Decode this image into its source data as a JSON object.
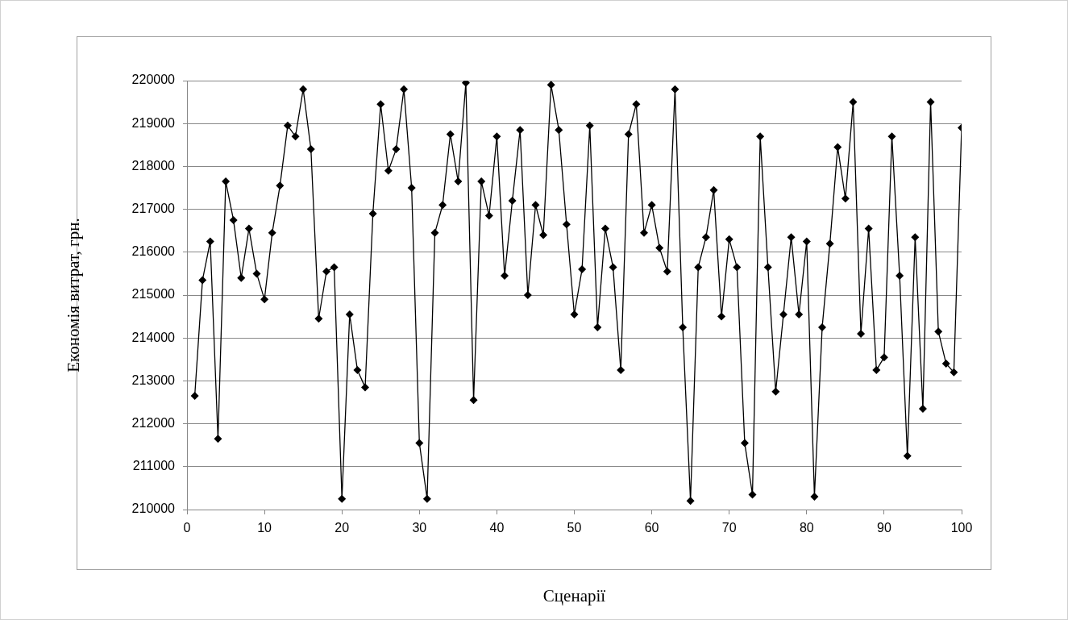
{
  "chart_data": {
    "type": "line",
    "xlabel": "Сценарії",
    "ylabel": "Економія витрат, грн.",
    "marker": "diamond",
    "grid": "y",
    "xlim": [
      0,
      100
    ],
    "xticks": [
      0,
      10,
      20,
      30,
      40,
      50,
      60,
      70,
      80,
      90,
      100
    ],
    "ylim": [
      210000,
      220000
    ],
    "yticks": [
      210000,
      211000,
      212000,
      213000,
      214000,
      215000,
      216000,
      217000,
      218000,
      219000,
      220000
    ],
    "x": [
      1,
      2,
      3,
      4,
      5,
      6,
      7,
      8,
      9,
      10,
      11,
      12,
      13,
      14,
      15,
      16,
      17,
      18,
      19,
      20,
      21,
      22,
      23,
      24,
      25,
      26,
      27,
      28,
      29,
      30,
      31,
      32,
      33,
      34,
      35,
      36,
      37,
      38,
      39,
      40,
      41,
      42,
      43,
      44,
      45,
      46,
      47,
      48,
      49,
      50,
      51,
      52,
      53,
      54,
      55,
      56,
      57,
      58,
      59,
      60,
      61,
      62,
      63,
      64,
      65,
      66,
      67,
      68,
      69,
      70,
      71,
      72,
      73,
      74,
      75,
      76,
      77,
      78,
      79,
      80,
      81,
      82,
      83,
      84,
      85,
      86,
      87,
      88,
      89,
      90,
      91,
      92,
      93,
      94,
      95,
      96,
      97,
      98,
      99,
      100
    ],
    "series": [
      {
        "color": "#000000",
        "values": [
          212650,
          215350,
          216250,
          211650,
          217650,
          216750,
          215400,
          216550,
          215500,
          214900,
          216450,
          217550,
          218950,
          218700,
          219800,
          218400,
          214450,
          215550,
          215650,
          210250,
          214550,
          213250,
          212850,
          216900,
          219450,
          217900,
          218400,
          219800,
          217500,
          211550,
          210250,
          216450,
          217100,
          218750,
          217650,
          219950,
          212550,
          217650,
          216850,
          218700,
          215450,
          217200,
          218850,
          215000,
          217100,
          216400,
          219900,
          218850,
          216650,
          214550,
          215600,
          218950,
          214250,
          216550,
          215650,
          213250,
          218750,
          219450,
          216450,
          217100,
          216100,
          215550,
          219800,
          214250,
          210200,
          215650,
          216350,
          217450,
          214500,
          216300,
          215650,
          211550,
          210350,
          218700,
          215650,
          212750,
          214550,
          216350,
          214550,
          216250,
          210300,
          214250,
          216200,
          218450,
          217250,
          219500,
          214100,
          216550,
          213250,
          213550,
          218700,
          215450,
          211250,
          216350,
          212350,
          219500,
          214150,
          213400,
          213200,
          218900
        ]
      }
    ]
  }
}
